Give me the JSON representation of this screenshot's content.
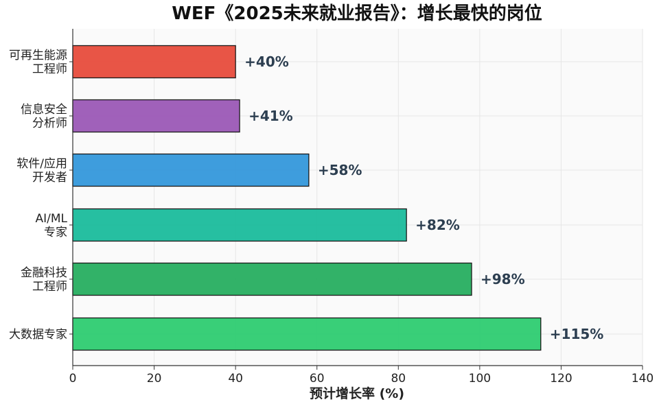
{
  "chart_data": {
    "type": "bar",
    "orientation": "horizontal",
    "title": "WEF《2025未来就业报告》：增长最快的岗位",
    "xlabel": "预计增长率 (%)",
    "ylabel": "",
    "xlim": [
      0,
      140
    ],
    "xticks": [
      "0",
      "20",
      "40",
      "60",
      "80",
      "100",
      "120",
      "140"
    ],
    "grid": "x",
    "categories": [
      {
        "lines": [
          "可再生能源",
          "工程师"
        ],
        "value": 40,
        "label": "+40%",
        "color": "#e74c3c"
      },
      {
        "lines": [
          "信息安全",
          "分析师"
        ],
        "value": 41,
        "label": "+41%",
        "color": "#9b59b6"
      },
      {
        "lines": [
          "软件/应用",
          "开发者"
        ],
        "value": 58,
        "label": "+58%",
        "color": "#3498db"
      },
      {
        "lines": [
          "AI/ML",
          "专家"
        ],
        "value": 82,
        "label": "+82%",
        "color": "#1abc9c"
      },
      {
        "lines": [
          "金融科技",
          "工程师"
        ],
        "value": 98,
        "label": "+98%",
        "color": "#27ae60"
      },
      {
        "lines": [
          "大数据专家"
        ],
        "value": 115,
        "label": "+115%",
        "color": "#2ecc71"
      }
    ]
  }
}
